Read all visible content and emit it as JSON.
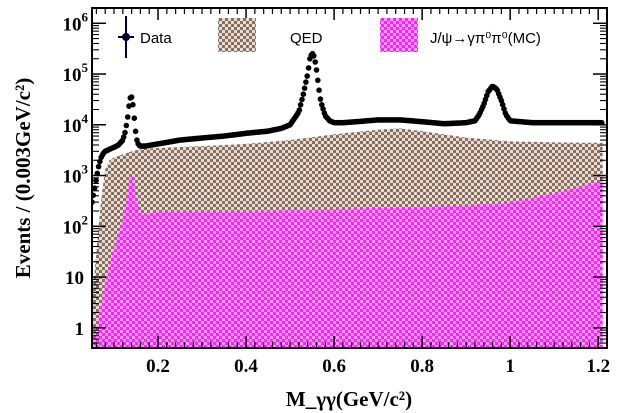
{
  "chart_data": {
    "type": "area",
    "xlabel": "M_γγ(GeV/c²)",
    "ylabel": "Events / (0.003GeV/c²)",
    "x_range": [
      0.05,
      1.22
    ],
    "y_range": [
      0.4,
      2000000
    ],
    "y_scale": "log",
    "x_ticks": [
      {
        "value": 0.2,
        "label": "0.2"
      },
      {
        "value": 0.4,
        "label": "0.4"
      },
      {
        "value": 0.6,
        "label": "0.6"
      },
      {
        "value": 0.8,
        "label": "0.8"
      },
      {
        "value": 1.0,
        "label": "1"
      },
      {
        "value": 1.2,
        "label": "1.2"
      }
    ],
    "y_ticks": [
      {
        "value": 1,
        "base": "1",
        "exp": ""
      },
      {
        "value": 10,
        "base": "10",
        "exp": ""
      },
      {
        "value": 100,
        "base": "10",
        "exp": "2"
      },
      {
        "value": 1000,
        "base": "10",
        "exp": "3"
      },
      {
        "value": 10000,
        "base": "10",
        "exp": "4"
      },
      {
        "value": 100000,
        "base": "10",
        "exp": "5"
      },
      {
        "value": 1000000,
        "base": "10",
        "exp": "6"
      }
    ],
    "legend": {
      "placement": "top",
      "entries": [
        {
          "label": "Data",
          "kind": "points",
          "color": "#000033"
        },
        {
          "label": "QED",
          "kind": "hatched-fill",
          "color": "#8B6F5E"
        },
        {
          "label": "J/ψ→γπ⁰π⁰(MC)",
          "kind": "hatched-fill",
          "color": "#FF1FFF"
        }
      ]
    },
    "series": [
      {
        "name": "QED",
        "kind": "filled-area",
        "color": "#8B6F5E",
        "x": [
          0.05,
          0.06,
          0.07,
          0.08,
          0.09,
          0.1,
          0.12,
          0.13,
          0.14,
          0.16,
          0.2,
          0.3,
          0.4,
          0.5,
          0.6,
          0.7,
          0.75,
          0.8,
          0.9,
          1.0,
          1.1,
          1.21
        ],
        "y": [
          4,
          30,
          300,
          1300,
          2000,
          2300,
          2600,
          2800,
          3000,
          3300,
          3500,
          3800,
          4200,
          5000,
          6500,
          8000,
          8500,
          7500,
          5600,
          4700,
          4500,
          4400
        ]
      },
      {
        "name": "J/ψ→γπ⁰π⁰(MC)",
        "kind": "filled-area",
        "color": "#FF1FFF",
        "x": [
          0.05,
          0.06,
          0.07,
          0.08,
          0.09,
          0.1,
          0.11,
          0.12,
          0.125,
          0.13,
          0.135,
          0.14,
          0.145,
          0.15,
          0.16,
          0.18,
          0.2,
          0.3,
          0.4,
          0.5,
          0.6,
          0.7,
          0.8,
          0.9,
          1.0,
          1.1,
          1.21
        ],
        "y": [
          0.5,
          1,
          3,
          8,
          20,
          40,
          80,
          150,
          250,
          500,
          900,
          1100,
          800,
          350,
          180,
          180,
          200,
          200,
          200,
          210,
          220,
          230,
          240,
          260,
          300,
          450,
          800
        ]
      },
      {
        "name": "Data",
        "kind": "markers",
        "color": "#000000",
        "x": [
          0.05,
          0.055,
          0.06,
          0.065,
          0.07,
          0.075,
          0.08,
          0.09,
          0.1,
          0.11,
          0.12,
          0.125,
          0.13,
          0.133,
          0.136,
          0.139,
          0.142,
          0.145,
          0.148,
          0.152,
          0.156,
          0.16,
          0.17,
          0.2,
          0.25,
          0.3,
          0.35,
          0.4,
          0.45,
          0.48,
          0.5,
          0.52,
          0.53,
          0.54,
          0.545,
          0.55,
          0.555,
          0.56,
          0.565,
          0.57,
          0.58,
          0.59,
          0.6,
          0.62,
          0.65,
          0.7,
          0.75,
          0.8,
          0.85,
          0.9,
          0.92,
          0.93,
          0.94,
          0.95,
          0.96,
          0.97,
          0.98,
          0.99,
          1.0,
          1.05,
          1.1,
          1.15,
          1.21
        ],
        "y": [
          300,
          500,
          900,
          1500,
          2200,
          2700,
          3000,
          3300,
          3600,
          4000,
          5000,
          7000,
          12000,
          20000,
          32000,
          38000,
          30000,
          17000,
          8500,
          5000,
          4000,
          3800,
          3800,
          4200,
          5000,
          5500,
          6000,
          6800,
          7500,
          8500,
          10000,
          18000,
          40000,
          100000,
          200000,
          260000,
          220000,
          120000,
          55000,
          28000,
          15000,
          12000,
          11000,
          11000,
          11500,
          12500,
          12500,
          11500,
          10500,
          11000,
          12000,
          16000,
          25000,
          45000,
          58000,
          50000,
          30000,
          16000,
          12000,
          11000,
          11000,
          11000,
          11000
        ]
      }
    ]
  }
}
